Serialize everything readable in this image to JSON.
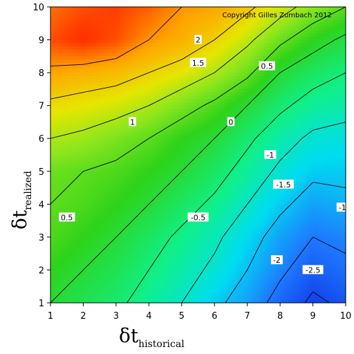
{
  "chart_data": {
    "type": "heatmap",
    "subtype": "filled-contour",
    "annotation": "Copyright Gilles Zumbach 2012",
    "xlabel": {
      "symbol": "δt",
      "subscript": "historical"
    },
    "ylabel": {
      "symbol": "δt",
      "subscript": "realized"
    },
    "xlim": [
      1,
      10
    ],
    "ylim": [
      1,
      10
    ],
    "xticks": [
      1,
      2,
      3,
      4,
      5,
      6,
      7,
      8,
      9,
      10
    ],
    "yticks": [
      1,
      2,
      3,
      4,
      5,
      6,
      7,
      8,
      9,
      10
    ],
    "x_grid": [
      1,
      2,
      3,
      4,
      5,
      6,
      7,
      8,
      9,
      10
    ],
    "y_grid": [
      1,
      2,
      3,
      4,
      5,
      6,
      7,
      8,
      9,
      10
    ],
    "z": [
      [
        0.0,
        -0.2,
        -0.4,
        -0.7,
        -1.0,
        -1.4,
        -1.7,
        -2.2,
        -2.6,
        -2.4
      ],
      [
        0.2,
        0.0,
        -0.2,
        -0.5,
        -0.8,
        -1.1,
        -1.5,
        -1.9,
        -2.3,
        -2.1
      ],
      [
        0.4,
        0.2,
        0.0,
        -0.3,
        -0.6,
        -0.9,
        -1.3,
        -1.7,
        -2.0,
        -1.9
      ],
      [
        0.5,
        0.4,
        0.2,
        0.0,
        -0.3,
        -0.6,
        -1.0,
        -1.4,
        -1.7,
        -1.6
      ],
      [
        0.6,
        0.5,
        0.4,
        0.2,
        0.0,
        -0.3,
        -0.7,
        -1.1,
        -1.4,
        -1.4
      ],
      [
        1.0,
        0.9,
        0.7,
        0.5,
        0.2,
        0.0,
        -0.4,
        -0.8,
        -1.1,
        -1.2
      ],
      [
        1.4,
        1.3,
        1.2,
        1.0,
        0.7,
        0.4,
        0.0,
        -0.4,
        -0.7,
        -0.8
      ],
      [
        1.9,
        1.8,
        1.7,
        1.5,
        1.3,
        1.0,
        0.6,
        0.0,
        -0.3,
        -0.5
      ],
      [
        2.4,
        2.6,
        2.4,
        2.0,
        1.8,
        1.5,
        1.1,
        0.6,
        0.2,
        -0.1
      ],
      [
        2.2,
        2.4,
        2.5,
        2.3,
        2.0,
        1.9,
        1.6,
        1.2,
        0.8,
        0.5
      ]
    ],
    "contour_levels": [
      -2.5,
      -2,
      -1.5,
      -1,
      -0.5,
      0,
      0.5,
      1,
      1.5,
      2
    ],
    "contour_labels": [
      {
        "text": "2",
        "x": 5.5,
        "y": 9.0
      },
      {
        "text": "1.5",
        "x": 5.5,
        "y": 8.3
      },
      {
        "text": "0.5",
        "x": 7.6,
        "y": 8.2
      },
      {
        "text": "1",
        "x": 3.5,
        "y": 6.5
      },
      {
        "text": "0",
        "x": 6.5,
        "y": 6.5
      },
      {
        "text": "-1",
        "x": 7.7,
        "y": 5.5
      },
      {
        "text": "-1.5",
        "x": 8.1,
        "y": 4.6
      },
      {
        "text": "-1",
        "x": 9.9,
        "y": 3.9
      },
      {
        "text": "0.5",
        "x": 1.5,
        "y": 3.6
      },
      {
        "text": "-0.5",
        "x": 5.5,
        "y": 3.6
      },
      {
        "text": "-2",
        "x": 7.9,
        "y": 2.3
      },
      {
        "text": "-2.5",
        "x": 9.0,
        "y": 2.0
      }
    ],
    "colormap": {
      "min": -3,
      "max": 3,
      "stops": [
        {
          "at": -3.0,
          "color": "#0a1edc"
        },
        {
          "at": -2.0,
          "color": "#1e78ff"
        },
        {
          "at": -1.3,
          "color": "#00dcf0"
        },
        {
          "at": -0.6,
          "color": "#10f08a"
        },
        {
          "at": 0.2,
          "color": "#2ed31a"
        },
        {
          "at": 0.8,
          "color": "#8ce61e"
        },
        {
          "at": 1.3,
          "color": "#e6e600"
        },
        {
          "at": 1.9,
          "color": "#ffa500"
        },
        {
          "at": 2.5,
          "color": "#ff3c00"
        },
        {
          "at": 3.0,
          "color": "#ee0000"
        }
      ]
    },
    "contour_color": "#000000",
    "grid": false
  }
}
